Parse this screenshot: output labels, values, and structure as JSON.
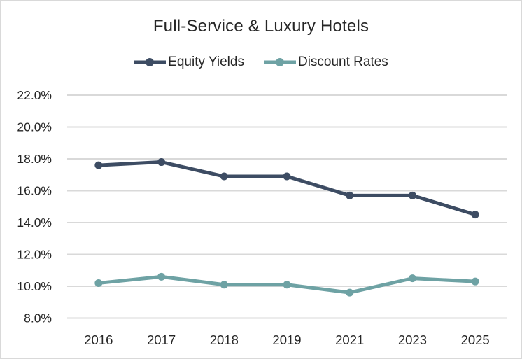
{
  "title": "Full-Service & Luxury Hotels",
  "legend": [
    {
      "label": "Equity Yields",
      "color": "#3D4C63"
    },
    {
      "label": "Discount Rates",
      "color": "#6EA2A4"
    }
  ],
  "colors": {
    "gridline": "#D9D9D9",
    "text": "#262626",
    "background": "#FFFFFF",
    "frame_border": "#D9D9D9"
  },
  "chart_data": {
    "type": "line",
    "title": "Full-Service & Luxury Hotels",
    "categories": [
      "2016",
      "2017",
      "2018",
      "2019",
      "2021",
      "2023",
      "2025"
    ],
    "series": [
      {
        "name": "Equity Yields",
        "color": "#3D4C63",
        "values": [
          17.6,
          17.8,
          16.9,
          16.9,
          15.7,
          15.7,
          14.5
        ]
      },
      {
        "name": "Discount Rates",
        "color": "#6EA2A4",
        "values": [
          10.2,
          10.6,
          10.1,
          10.1,
          9.6,
          10.5,
          10.3
        ]
      }
    ],
    "xlabel": "",
    "ylabel": "",
    "ylim": [
      8,
      22
    ],
    "ytick_step": 2,
    "ytick_labels": [
      "8.0%",
      "10.0%",
      "12.0%",
      "14.0%",
      "16.0%",
      "18.0%",
      "20.0%",
      "22.0%"
    ],
    "grid": true,
    "legend_position": "top-center",
    "marker": "circle"
  }
}
